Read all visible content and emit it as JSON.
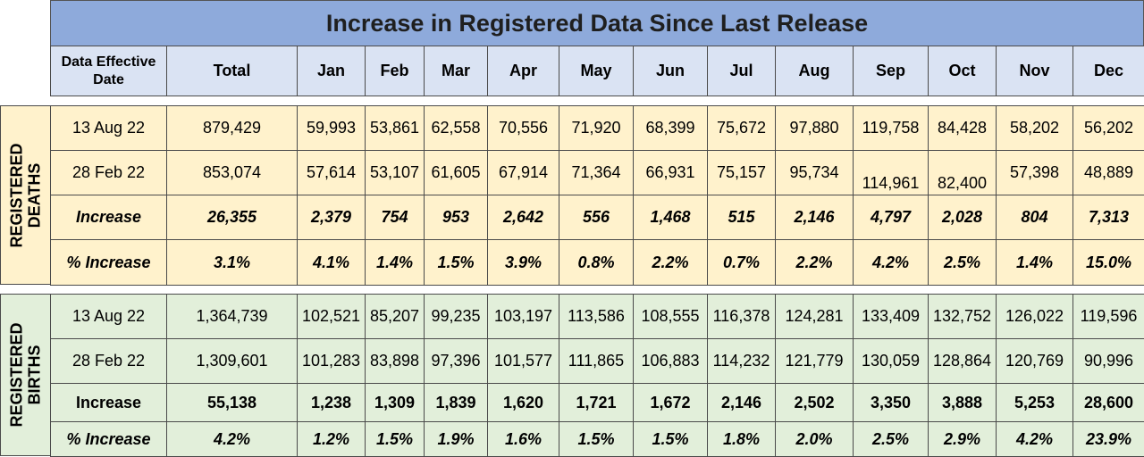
{
  "title": "Increase in Registered Data Since Last Release",
  "header": [
    "Data Effective Date",
    "Total",
    "Jan",
    "Feb",
    "Mar",
    "Apr",
    "May",
    "Jun",
    "Jul",
    "Aug",
    "Sep",
    "Oct",
    "Nov",
    "Dec"
  ],
  "deaths": {
    "label": "REGISTERED DEATHS",
    "rows": [
      [
        "13 Aug 22",
        "879,429",
        "59,993",
        "53,861",
        "62,558",
        "70,556",
        "71,920",
        "68,399",
        "75,672",
        "97,880",
        "119,758",
        "84,428",
        "58,202",
        "56,202"
      ],
      [
        "28 Feb 22",
        "853,074",
        "57,614",
        "53,107",
        "61,605",
        "67,914",
        "71,364",
        "66,931",
        "75,157",
        "95,734",
        "114,961",
        "82,400",
        "57,398",
        "48,889"
      ],
      [
        "Increase",
        "26,355",
        "2,379",
        "754",
        "953",
        "2,642",
        "556",
        "1,468",
        "515",
        "2,146",
        "4,797",
        "2,028",
        "804",
        "7,313"
      ],
      [
        "% Increase",
        "3.1%",
        "4.1%",
        "1.4%",
        "1.5%",
        "3.9%",
        "0.8%",
        "2.2%",
        "0.7%",
        "2.2%",
        "4.2%",
        "2.5%",
        "1.4%",
        "15.0%"
      ]
    ]
  },
  "births": {
    "label": "REGISTERED BIRTHS",
    "rows": [
      [
        "13 Aug 22",
        "1,364,739",
        "102,521",
        "85,207",
        "99,235",
        "103,197",
        "113,586",
        "108,555",
        "116,378",
        "124,281",
        "133,409",
        "132,752",
        "126,022",
        "119,596"
      ],
      [
        "28 Feb 22",
        "1,309,601",
        "101,283",
        "83,898",
        "97,396",
        "101,577",
        "111,865",
        "106,883",
        "114,232",
        "121,779",
        "130,059",
        "128,864",
        "120,769",
        "90,996"
      ],
      [
        "Increase",
        "55,138",
        "1,238",
        "1,309",
        "1,839",
        "1,620",
        "1,721",
        "1,672",
        "2,146",
        "2,502",
        "3,350",
        "3,888",
        "5,253",
        "28,600"
      ],
      [
        "% Increase",
        "4.2%",
        "1.2%",
        "1.5%",
        "1.9%",
        "1.6%",
        "1.5%",
        "1.5%",
        "1.8%",
        "2.0%",
        "2.5%",
        "2.9%",
        "4.2%",
        "23.9%"
      ]
    ]
  }
}
